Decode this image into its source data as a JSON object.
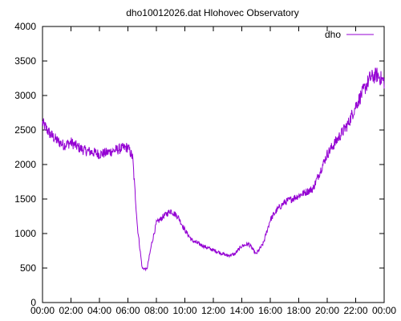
{
  "chart_data": {
    "type": "line",
    "title": "dho10012026.dat Hlohovec Observatory",
    "xlabel": "",
    "ylabel": "",
    "xlim": [
      "00:00",
      "24:00"
    ],
    "ylim": [
      0,
      4000
    ],
    "x_ticks": [
      "00:00",
      "02:00",
      "04:00",
      "06:00",
      "08:00",
      "10:00",
      "12:00",
      "14:00",
      "16:00",
      "18:00",
      "20:00",
      "22:00",
      "00:00"
    ],
    "y_ticks": [
      "0",
      "500",
      "1000",
      "1500",
      "2000",
      "2500",
      "3000",
      "3500",
      "4000"
    ],
    "grid": false,
    "legend_position": "top-right",
    "series": [
      {
        "name": "dho",
        "color": "#9400d3",
        "x": [
          "00:00",
          "00:30",
          "01:00",
          "01:30",
          "02:00",
          "02:30",
          "03:00",
          "03:30",
          "04:00",
          "04:30",
          "05:00",
          "05:30",
          "06:00",
          "06:20",
          "06:40",
          "07:00",
          "07:20",
          "07:40",
          "08:00",
          "08:30",
          "09:00",
          "09:30",
          "10:00",
          "10:30",
          "11:00",
          "11:30",
          "12:00",
          "12:30",
          "13:00",
          "13:30",
          "14:00",
          "14:30",
          "15:00",
          "15:30",
          "16:00",
          "16:30",
          "17:00",
          "17:30",
          "18:00",
          "18:30",
          "19:00",
          "19:30",
          "20:00",
          "20:30",
          "21:00",
          "21:30",
          "22:00",
          "22:30",
          "23:00",
          "23:30",
          "24:00"
        ],
        "values": [
          2600,
          2450,
          2350,
          2280,
          2320,
          2250,
          2200,
          2180,
          2150,
          2170,
          2200,
          2230,
          2250,
          2100,
          1100,
          500,
          480,
          850,
          1150,
          1250,
          1330,
          1250,
          1050,
          900,
          850,
          800,
          760,
          720,
          680,
          700,
          820,
          850,
          700,
          850,
          1200,
          1350,
          1450,
          1500,
          1550,
          1600,
          1650,
          1900,
          2150,
          2300,
          2450,
          2600,
          2850,
          3050,
          3250,
          3300,
          3200
        ]
      }
    ]
  }
}
